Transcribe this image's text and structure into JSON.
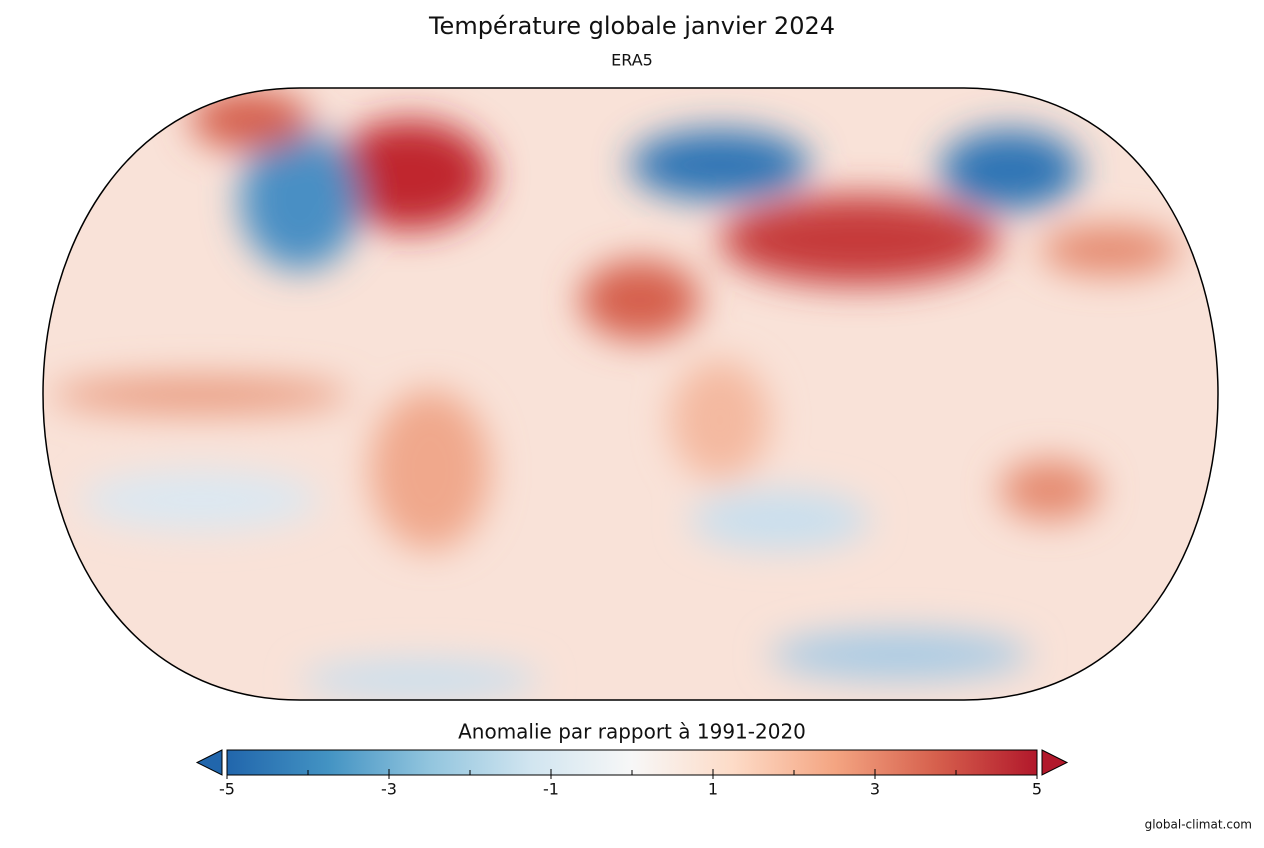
{
  "title": "Température globale janvier 2024",
  "subtitle": "ERA5",
  "colorbar": {
    "label": "Anomalie par rapport à 1991-2020",
    "lim": [
      -5,
      5
    ],
    "ticks": [
      -5,
      -3,
      -1,
      1,
      3,
      5
    ],
    "minor_ticks": [
      -4,
      -2,
      0,
      2,
      4
    ],
    "colors": [
      "#2166ac",
      "#4393c3",
      "#92c5de",
      "#d1e5f0",
      "#f7f7f7",
      "#fddbc7",
      "#f4a582",
      "#d6604d",
      "#b2182b"
    ],
    "extend": "both"
  },
  "credit": "global-climat.com"
}
